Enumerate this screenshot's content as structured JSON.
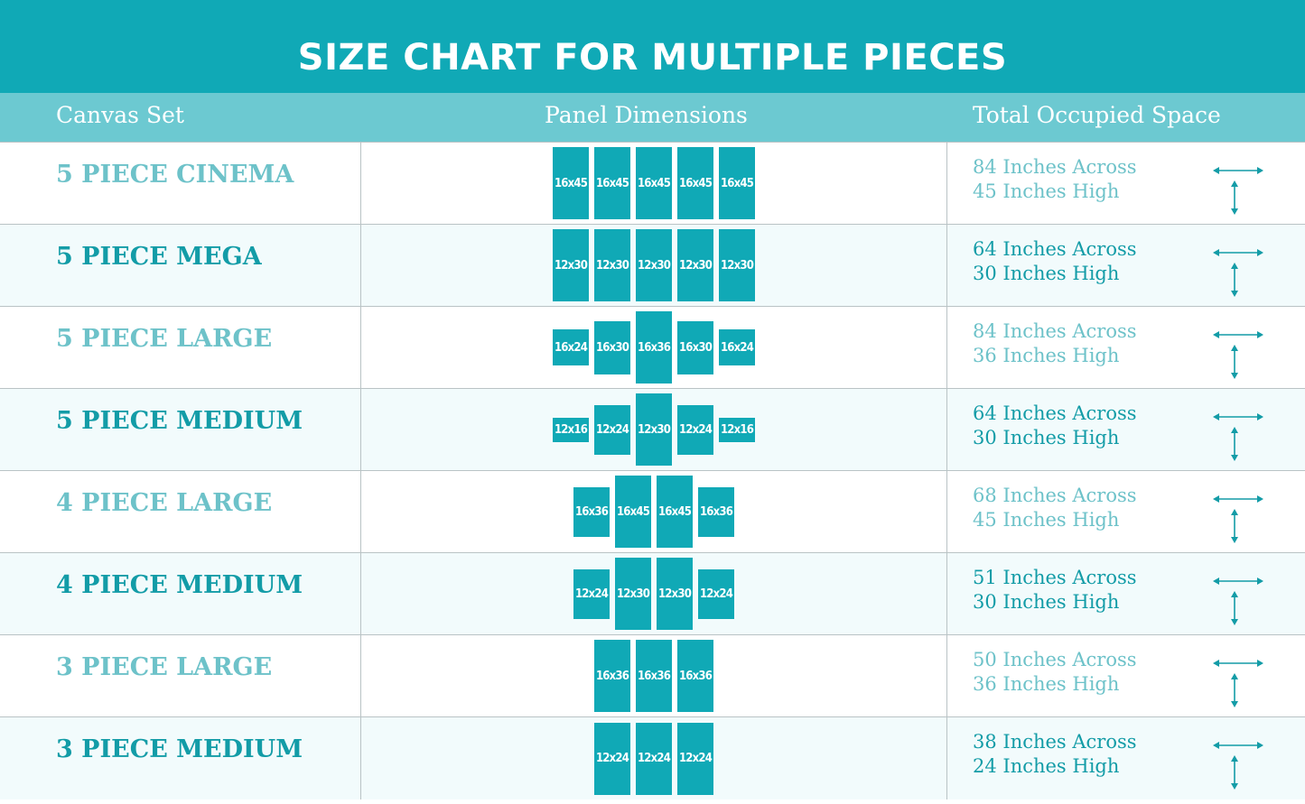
{
  "title": "SIZE CHART FOR MULTIPLE PIECES",
  "columns": [
    "Canvas Set",
    "Panel Dimensions",
    "Total Occupied Space"
  ],
  "colors": {
    "brand": "#10a9b6",
    "header": "#6cc9d1",
    "light_text": "#6dc2c9",
    "dark_text": "#139ca7"
  },
  "icons": {
    "across": "double-arrow-horizontal-icon",
    "high": "double-arrow-vertical-icon"
  },
  "rows": [
    {
      "name": "5 PIECE CINEMA",
      "panels": [
        "16x45",
        "16x45",
        "16x45",
        "16x45",
        "16x45"
      ],
      "across": "84 Inches Across",
      "high": "45 Inches High"
    },
    {
      "name": "5 PIECE MEGA",
      "panels": [
        "12x30",
        "12x30",
        "12x30",
        "12x30",
        "12x30"
      ],
      "across": "64 Inches Across",
      "high": "30 Inches High"
    },
    {
      "name": "5 PIECE LARGE",
      "panels": [
        "16x24",
        "16x30",
        "16x36",
        "16x30",
        "16x24"
      ],
      "across": "84 Inches Across",
      "high": "36 Inches High"
    },
    {
      "name": "5 PIECE MEDIUM",
      "panels": [
        "12x16",
        "12x24",
        "12x30",
        "12x24",
        "12x16"
      ],
      "across": "64 Inches Across",
      "high": "30 Inches High"
    },
    {
      "name": "4 PIECE LARGE",
      "panels": [
        "16x36",
        "16x45",
        "16x45",
        "16x36"
      ],
      "across": "68 Inches Across",
      "high": "45 Inches High"
    },
    {
      "name": "4 PIECE MEDIUM",
      "panels": [
        "12x24",
        "12x30",
        "12x30",
        "12x24"
      ],
      "across": "51 Inches Across",
      "high": "30 Inches High"
    },
    {
      "name": "3 PIECE LARGE",
      "panels": [
        "16x36",
        "16x36",
        "16x36"
      ],
      "across": "50 Inches Across",
      "high": "36 Inches High"
    },
    {
      "name": "3 PIECE MEDIUM",
      "panels": [
        "12x24",
        "12x24",
        "12x24"
      ],
      "across": "38 Inches Across",
      "high": "24 Inches High"
    }
  ]
}
